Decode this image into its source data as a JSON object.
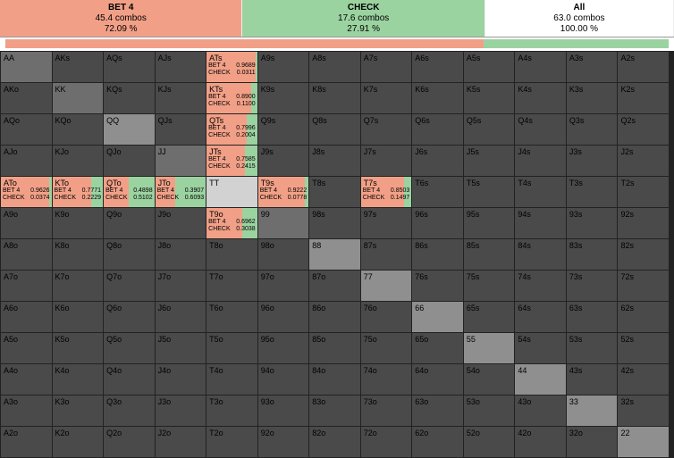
{
  "colors": {
    "bet": "#f1a087",
    "check": "#9bd3a0",
    "all_bg": "#ffffff",
    "dark": "#4a4a4a",
    "light": "#8f8f8f",
    "mid": "#6e6e6e",
    "bottom": "#d2d2d2"
  },
  "header": {
    "sections": [
      {
        "title": "BET 4",
        "combos": "45.4 combos",
        "pct": "72.09 %",
        "bg_key": "bet",
        "width_pct": 36
      },
      {
        "title": "CHECK",
        "combos": "17.6 combos",
        "pct": "27.91 %",
        "bg_key": "check",
        "width_pct": 36
      },
      {
        "title": "All",
        "combos": "63.0 combos",
        "pct": "100.00 %",
        "bg_key": "all_bg",
        "width_pct": 28
      }
    ]
  },
  "bar": [
    {
      "color_key": "bet",
      "width_pct": 72.09
    },
    {
      "color_key": "check",
      "width_pct": 27.91
    }
  ],
  "ranks": [
    "A",
    "K",
    "Q",
    "J",
    "T",
    "9",
    "8",
    "7",
    "6",
    "5",
    "4",
    "3",
    "2"
  ],
  "highlight_pairs": {
    "TT": true
  },
  "light_pairs": {
    "QQ": true,
    "88": true,
    "77": true,
    "66": true,
    "55": true,
    "44": true,
    "33": true,
    "22": true
  },
  "mid_pairs": {
    "AA": true,
    "KK": true,
    "JJ": true,
    "99": true
  },
  "mix_cells": {
    "ATs": {
      "bet": 0.9689,
      "check": 0.0311
    },
    "KTs": {
      "bet": 0.89,
      "check": 0.11
    },
    "QTs": {
      "bet": 0.7996,
      "check": 0.2004
    },
    "JTs": {
      "bet": 0.7585,
      "check": 0.2415
    },
    "ATo": {
      "bet": 0.9626,
      "check": 0.0374
    },
    "KTo": {
      "bet": 0.7771,
      "check": 0.2229
    },
    "QTo": {
      "bet": 0.4898,
      "check": 0.5102
    },
    "JTo": {
      "bet": 0.3907,
      "check": 0.6093
    },
    "T9s": {
      "bet": 0.9222,
      "check": 0.0778
    },
    "T7s": {
      "bet": 0.8503,
      "check": 0.1497
    },
    "T9o": {
      "bet": 0.6962,
      "check": 0.3038
    }
  },
  "labels": {
    "bet_line": "BET 4",
    "check_line": "CHECK"
  }
}
